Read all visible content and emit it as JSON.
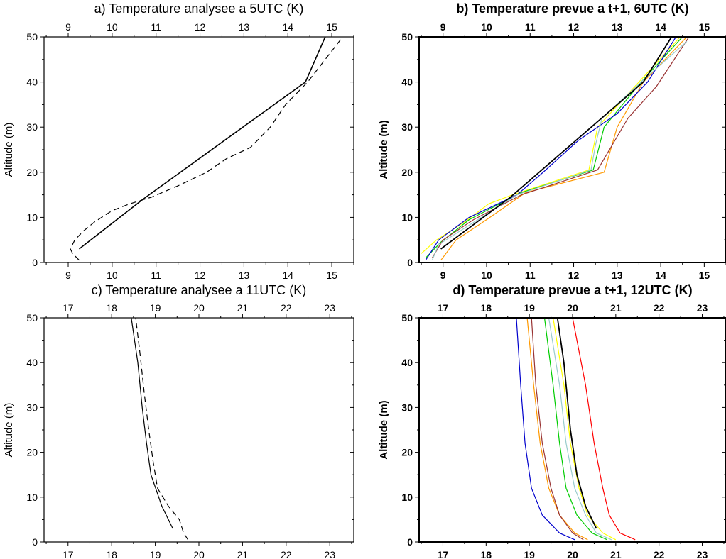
{
  "chart_data": [
    {
      "type": "line",
      "title": "a) Temperature analysee a 5UTC (K)",
      "ylabel": "Altitude (m)",
      "xlim": [
        8.45,
        15.5
      ],
      "ylim": [
        0,
        50
      ],
      "xticks": [
        9,
        10,
        11,
        12,
        13,
        14,
        15
      ],
      "yticks": [
        0,
        10,
        20,
        30,
        40,
        50
      ],
      "series": [
        {
          "color": "#000000",
          "dash": "solid",
          "width": 1.6,
          "points": [
            [
              9.25,
              3
            ],
            [
              10.7,
              14
            ],
            [
              14.4,
              40
            ],
            [
              14.85,
              50
            ]
          ]
        },
        {
          "color": "#000000",
          "dash": "dashed",
          "width": 1.2,
          "points": [
            [
              9.25,
              0.5
            ],
            [
              9.1,
              2
            ],
            [
              9.05,
              3
            ],
            [
              9.15,
              5
            ],
            [
              9.35,
              7
            ],
            [
              9.6,
              9
            ],
            [
              10.0,
              11.5
            ],
            [
              10.4,
              13
            ],
            [
              10.9,
              14.5
            ],
            [
              11.5,
              17
            ],
            [
              12.15,
              20
            ],
            [
              12.6,
              23
            ],
            [
              13.15,
              25.5
            ],
            [
              13.6,
              30
            ],
            [
              13.95,
              35
            ],
            [
              14.45,
              40
            ],
            [
              14.85,
              45
            ],
            [
              15.25,
              50
            ]
          ]
        }
      ]
    },
    {
      "type": "line",
      "title": "b) Temperature prevue a t+1, 6UTC (K)",
      "ylabel": "Altitude (m)",
      "xlim": [
        8.45,
        15.5
      ],
      "ylim": [
        0,
        50
      ],
      "xticks": [
        9,
        10,
        11,
        12,
        13,
        14,
        15
      ],
      "yticks": [
        0,
        10,
        20,
        30,
        40,
        50
      ],
      "series": [
        {
          "color": "#ff9900",
          "dash": "solid",
          "width": 1.2,
          "points": [
            [
              8.95,
              0.5
            ],
            [
              9.3,
              5
            ],
            [
              10.0,
              9.5
            ],
            [
              10.9,
              15.5
            ],
            [
              12.7,
              20
            ],
            [
              13.0,
              30
            ],
            [
              13.6,
              40
            ],
            [
              14.6,
              50
            ]
          ]
        },
        {
          "color": "#ffff00",
          "dash": "solid",
          "width": 1.2,
          "points": [
            [
              8.5,
              2
            ],
            [
              8.85,
              5
            ],
            [
              9.5,
              9
            ],
            [
              10.05,
              13
            ],
            [
              10.6,
              15
            ],
            [
              12.35,
              20.5
            ],
            [
              12.55,
              30
            ],
            [
              13.5,
              40
            ],
            [
              14.45,
              50
            ]
          ]
        },
        {
          "color": "#00cc00",
          "dash": "solid",
          "width": 1.2,
          "points": [
            [
              8.6,
              1
            ],
            [
              8.95,
              4.5
            ],
            [
              9.6,
              9.5
            ],
            [
              10.8,
              15.5
            ],
            [
              12.45,
              20.5
            ],
            [
              12.7,
              30
            ],
            [
              13.55,
              40
            ],
            [
              14.5,
              50
            ]
          ]
        },
        {
          "color": "#0000cc",
          "dash": "solid",
          "width": 1.2,
          "points": [
            [
              8.6,
              0.5
            ],
            [
              8.9,
              5
            ],
            [
              9.6,
              10
            ],
            [
              10.7,
              15
            ],
            [
              11.3,
              20
            ],
            [
              12.1,
              27
            ],
            [
              13.0,
              33
            ],
            [
              13.7,
              40
            ],
            [
              14.35,
              50
            ]
          ]
        },
        {
          "color": "#993333",
          "dash": "solid",
          "width": 1.2,
          "points": [
            [
              8.75,
              1
            ],
            [
              9.0,
              5
            ],
            [
              9.7,
              9.5
            ],
            [
              10.8,
              15
            ],
            [
              12.55,
              20.5
            ],
            [
              13.25,
              32
            ],
            [
              13.9,
              39
            ],
            [
              14.65,
              50
            ]
          ]
        },
        {
          "color": "#99cccc",
          "dash": "solid",
          "width": 1.2,
          "points": [
            [
              8.75,
              0.5
            ],
            [
              8.9,
              4
            ],
            [
              10.7,
              15
            ],
            [
              12.4,
              20.5
            ],
            [
              12.5,
              26
            ],
            [
              12.65,
              32
            ],
            [
              13.55,
              40
            ],
            [
              14.6,
              49
            ]
          ]
        },
        {
          "color": "#000000",
          "dash": "solid",
          "width": 1.8,
          "points": [
            [
              8.95,
              3
            ],
            [
              10.55,
              14.5
            ],
            [
              13.6,
              40
            ],
            [
              14.25,
              50
            ]
          ]
        }
      ]
    },
    {
      "type": "line",
      "title": "c) Temperature analysee a 11UTC (K)",
      "ylabel": "Altitude (m)",
      "xlim": [
        16.45,
        23.55
      ],
      "ylim": [
        0,
        50
      ],
      "xticks": [
        17,
        18,
        19,
        20,
        21,
        22,
        23
      ],
      "yticks": [
        0,
        10,
        20,
        30,
        40,
        50
      ],
      "series": [
        {
          "color": "#000000",
          "dash": "solid",
          "width": 1.2,
          "points": [
            [
              19.4,
              3
            ],
            [
              19.15,
              8
            ],
            [
              18.9,
              15
            ],
            [
              18.8,
              22
            ],
            [
              18.7,
              30
            ],
            [
              18.6,
              40
            ],
            [
              18.45,
              50
            ]
          ]
        },
        {
          "color": "#000000",
          "dash": "dashed",
          "width": 1.2,
          "points": [
            [
              19.75,
              0.5
            ],
            [
              19.65,
              2
            ],
            [
              19.55,
              5
            ],
            [
              19.3,
              8
            ],
            [
              19.05,
              12
            ],
            [
              18.95,
              18
            ],
            [
              18.85,
              25
            ],
            [
              18.75,
              33
            ],
            [
              18.65,
              42
            ],
            [
              18.55,
              50
            ]
          ]
        }
      ]
    },
    {
      "type": "line",
      "title": "d) Temperature prevue a t+1, 12UTC (K)",
      "ylabel": "Altitude (m)",
      "xlim": [
        16.45,
        23.55
      ],
      "ylim": [
        0,
        50
      ],
      "xticks": [
        17,
        18,
        19,
        20,
        21,
        22,
        23
      ],
      "yticks": [
        0,
        10,
        20,
        30,
        40,
        50
      ],
      "series": [
        {
          "color": "#0000cc",
          "dash": "solid",
          "width": 1.2,
          "points": [
            [
              20.05,
              0.5
            ],
            [
              19.7,
              2
            ],
            [
              19.3,
              6
            ],
            [
              19.05,
              12
            ],
            [
              18.9,
              22
            ],
            [
              18.8,
              35
            ],
            [
              18.7,
              50
            ]
          ]
        },
        {
          "color": "#ff9900",
          "dash": "solid",
          "width": 1.2,
          "points": [
            [
              20.35,
              0.5
            ],
            [
              20.05,
              2
            ],
            [
              19.7,
              6
            ],
            [
              19.45,
              12
            ],
            [
              19.25,
              22
            ],
            [
              19.1,
              35
            ],
            [
              18.95,
              50
            ]
          ]
        },
        {
          "color": "#993333",
          "dash": "solid",
          "width": 1.2,
          "points": [
            [
              20.25,
              0.5
            ],
            [
              20.0,
              2
            ],
            [
              19.7,
              6
            ],
            [
              19.5,
              12
            ],
            [
              19.3,
              22
            ],
            [
              19.15,
              35
            ],
            [
              19.05,
              50
            ]
          ]
        },
        {
          "color": "#00cc00",
          "dash": "solid",
          "width": 1.2,
          "points": [
            [
              20.8,
              0.5
            ],
            [
              20.45,
              2
            ],
            [
              20.1,
              6
            ],
            [
              19.85,
              12
            ],
            [
              19.7,
              22
            ],
            [
              19.55,
              35
            ],
            [
              19.35,
              50
            ]
          ]
        },
        {
          "color": "#ffff00",
          "dash": "solid",
          "width": 1.2,
          "points": [
            [
              21.0,
              0.5
            ],
            [
              20.7,
              2
            ],
            [
              20.35,
              6
            ],
            [
              20.15,
              12
            ],
            [
              19.95,
              22
            ],
            [
              19.8,
              35
            ],
            [
              19.55,
              50
            ]
          ]
        },
        {
          "color": "#99cccc",
          "dash": "solid",
          "width": 1.2,
          "points": [
            [
              20.9,
              0.5
            ],
            [
              20.55,
              2
            ],
            [
              20.3,
              6
            ],
            [
              20.05,
              12
            ],
            [
              19.85,
              22
            ],
            [
              19.7,
              35
            ],
            [
              19.45,
              50
            ]
          ]
        },
        {
          "color": "#ff0000",
          "dash": "solid",
          "width": 1.2,
          "points": [
            [
              21.45,
              0.5
            ],
            [
              21.1,
              2
            ],
            [
              20.85,
              6
            ],
            [
              20.7,
              12
            ],
            [
              20.5,
              22
            ],
            [
              20.3,
              35
            ],
            [
              20.0,
              50
            ]
          ]
        },
        {
          "color": "#000000",
          "dash": "solid",
          "width": 1.8,
          "points": [
            [
              20.55,
              3
            ],
            [
              20.3,
              8
            ],
            [
              20.1,
              15
            ],
            [
              19.95,
              25
            ],
            [
              19.8,
              40
            ],
            [
              19.65,
              50
            ]
          ]
        }
      ]
    }
  ]
}
